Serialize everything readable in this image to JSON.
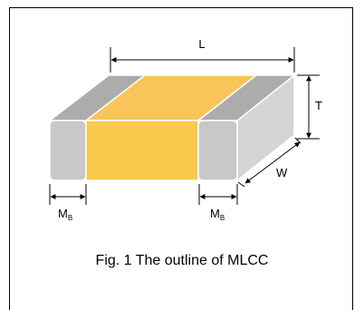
{
  "diagram": {
    "labels": {
      "length": "L",
      "thickness": "T",
      "width": "W",
      "margin_main": "M",
      "margin_sub": "B"
    },
    "caption": "Fig. 1 The outline of MLCC",
    "colors": {
      "electrode_front": "#c8c8c8",
      "electrode_top": "#acacac",
      "electrode_side": "#d4d4d4",
      "body_front": "#f9c84d",
      "body_top": "#f9c459",
      "line": "#000000",
      "edge": "#ffffff"
    }
  }
}
